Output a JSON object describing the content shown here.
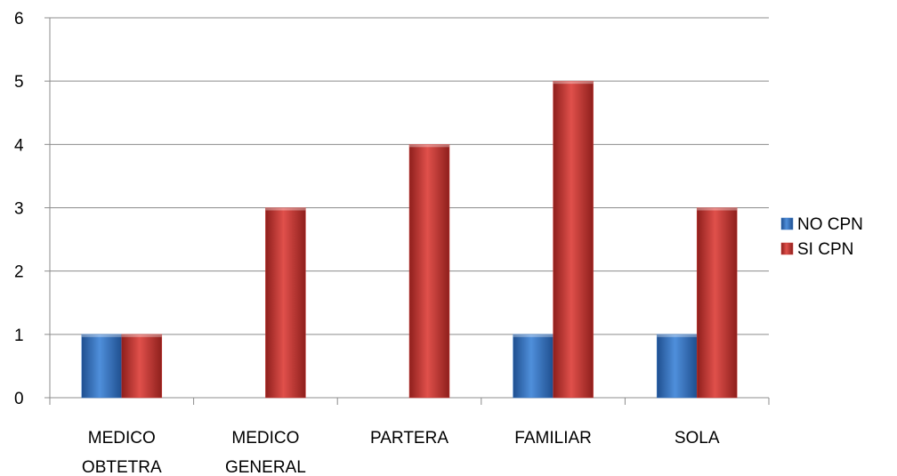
{
  "chart_data": {
    "type": "bar",
    "title": "",
    "xlabel": "",
    "ylabel": "",
    "categories": [
      [
        "MEDICO",
        "OBTETRA"
      ],
      [
        "MEDICO",
        "GENERAL"
      ],
      [
        "PARTERA"
      ],
      [
        "FAMILIAR"
      ],
      [
        "SOLA"
      ]
    ],
    "series": [
      {
        "name": "NO CPN",
        "color": "#3a78c6",
        "values": [
          1,
          0,
          0,
          1,
          1
        ]
      },
      {
        "name": "SI CPN",
        "color": "#c93a36",
        "values": [
          1,
          3,
          4,
          5,
          3
        ]
      }
    ],
    "ylim": [
      0,
      6
    ],
    "yticks": [
      "0",
      "1",
      "2",
      "3",
      "4",
      "5",
      "6"
    ],
    "grid": true,
    "legend_position": "right"
  }
}
